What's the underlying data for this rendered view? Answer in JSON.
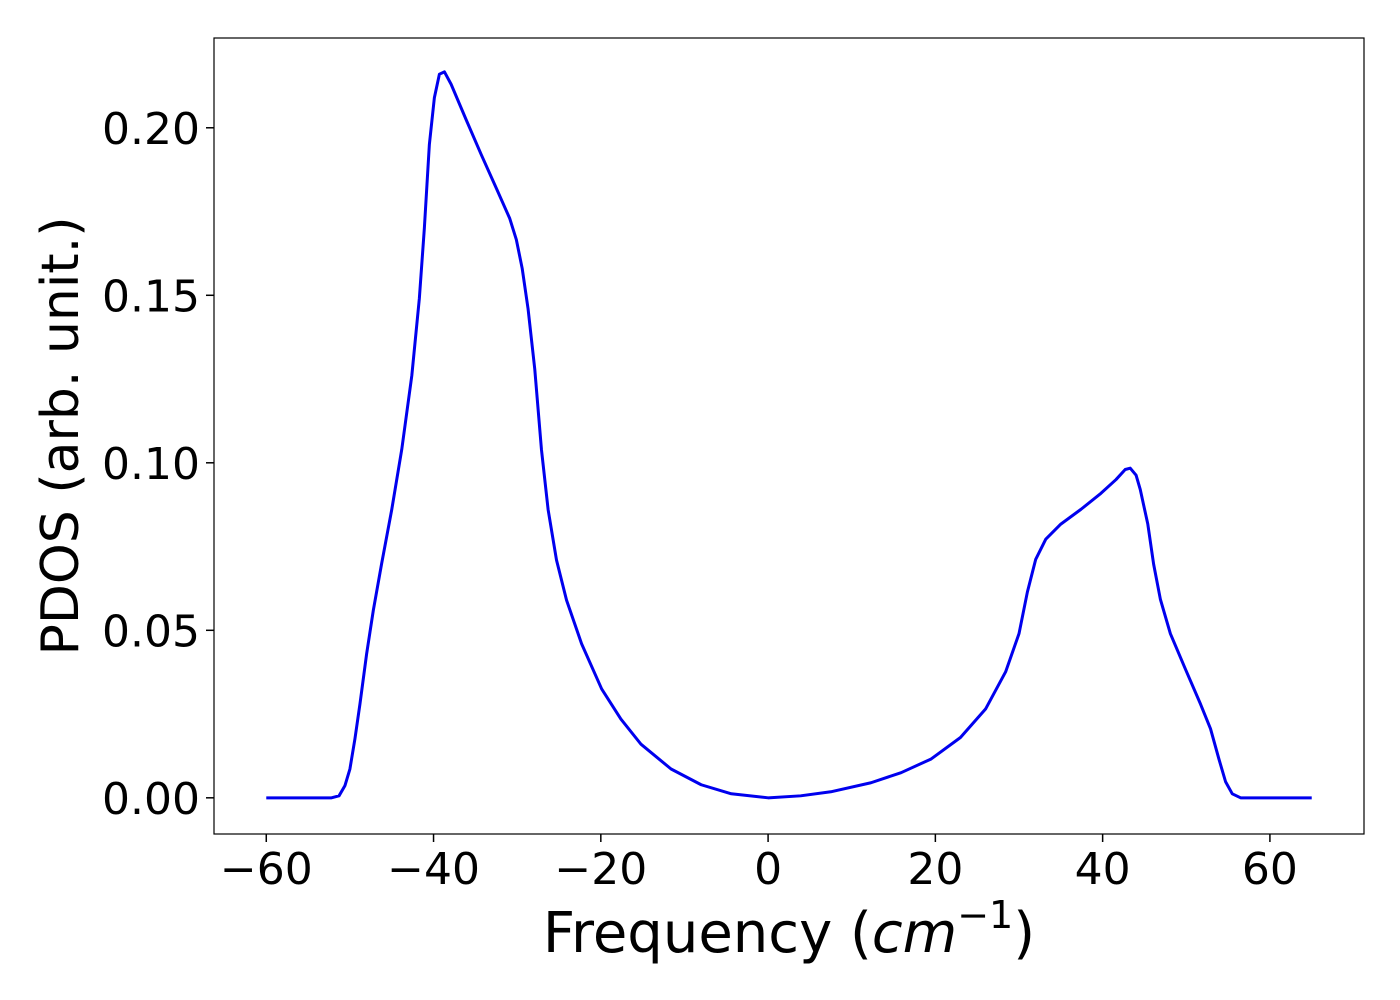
{
  "chart_data": {
    "type": "line",
    "xlabel": [
      "Frequency (",
      "cm",
      "−1",
      ")"
    ],
    "ylabel": "PDOS (arb. unit.)",
    "xlim": [
      -66.25,
      71.25
    ],
    "ylim": [
      -0.0108,
      0.2268
    ],
    "xticks": [
      {
        "value": -60,
        "label": "−60"
      },
      {
        "value": -40,
        "label": "−40"
      },
      {
        "value": -20,
        "label": "−20"
      },
      0,
      20,
      40,
      60
    ],
    "yticks": [
      {
        "value": 0,
        "label": "0.00"
      },
      {
        "value": 0.05,
        "label": "0.05"
      },
      {
        "value": 0.1,
        "label": "0.10"
      },
      {
        "value": 0.15,
        "label": "0.15"
      },
      {
        "value": 0.2,
        "label": "0.20"
      }
    ],
    "grid": false,
    "series": [
      {
        "color": "#0000ee",
        "x": [
          -60,
          -52.2,
          -51.3,
          -50.6,
          -50.0,
          -49.4,
          -48.8,
          -48.0,
          -47.2,
          -46.2,
          -45.0,
          -43.8,
          -42.6,
          -41.7,
          -41.1,
          -40.5,
          -39.9,
          -39.3,
          -38.7,
          -37.9,
          -36.1,
          -34.3,
          -32.5,
          -30.9,
          -30.1,
          -29.4,
          -28.7,
          -27.9,
          -27.1,
          -26.3,
          -25.3,
          -24.1,
          -22.3,
          -19.9,
          -17.6,
          -15.2,
          -11.6,
          -8.0,
          -4.4,
          0,
          3.9,
          7.5,
          12.3,
          15.9,
          19.5,
          23.0,
          26.0,
          28.4,
          30.0,
          31.0,
          32.0,
          33.2,
          35.0,
          37.4,
          39.8,
          41.6,
          42.7,
          43.3,
          44.0,
          44.5,
          45.4,
          46.1,
          46.9,
          48.1,
          49.9,
          51.7,
          52.9,
          53.9,
          54.7,
          55.5,
          56.5,
          65
        ],
        "values": [
          0,
          0,
          0.0006,
          0.0036,
          0.0086,
          0.0176,
          0.028,
          0.043,
          0.056,
          0.07,
          0.086,
          0.104,
          0.126,
          0.149,
          0.17,
          0.195,
          0.209,
          0.216,
          0.2167,
          0.213,
          0.2024,
          0.192,
          0.182,
          0.173,
          0.1666,
          0.158,
          0.146,
          0.128,
          0.104,
          0.086,
          0.071,
          0.059,
          0.046,
          0.0325,
          0.0235,
          0.016,
          0.0086,
          0.0039,
          0.0012,
          0,
          0.0006,
          0.0018,
          0.0045,
          0.0075,
          0.0116,
          0.018,
          0.0265,
          0.0376,
          0.049,
          0.0614,
          0.0712,
          0.0772,
          0.0817,
          0.0861,
          0.0909,
          0.095,
          0.098,
          0.0984,
          0.0963,
          0.092,
          0.0817,
          0.0697,
          0.0593,
          0.049,
          0.0384,
          0.028,
          0.0206,
          0.0116,
          0.0048,
          0.0012,
          0,
          0
        ]
      }
    ]
  }
}
